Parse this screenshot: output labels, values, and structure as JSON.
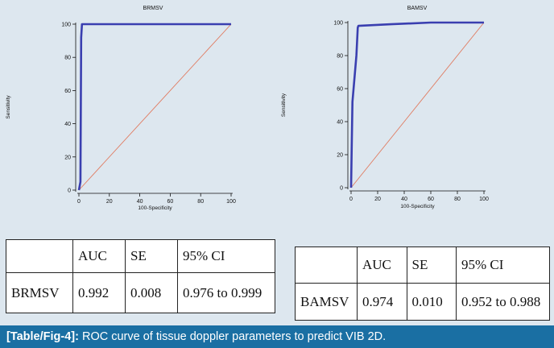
{
  "chart_data": [
    {
      "type": "line",
      "title": "BRMSV",
      "xlabel": "100-Specificity",
      "ylabel": "Sensitivity",
      "xlim": [
        0,
        100
      ],
      "ylim": [
        0,
        100
      ],
      "xticks": [
        "0",
        "20",
        "40",
        "60",
        "80",
        "100"
      ],
      "yticks": [
        "0",
        "20",
        "40",
        "60",
        "80",
        "100"
      ],
      "grid": false,
      "series": [
        {
          "color": "#3a3fb0",
          "points": [
            [
              0,
              0
            ],
            [
              1,
              5
            ],
            [
              1.5,
              92
            ],
            [
              2,
              100
            ],
            [
              50,
              100
            ],
            [
              100,
              100
            ]
          ]
        },
        {
          "color": "#e07a5f",
          "points": [
            [
              0,
              0
            ],
            [
              100,
              100
            ]
          ]
        }
      ]
    },
    {
      "type": "line",
      "title": "BAMSV",
      "xlabel": "100-Specificity",
      "ylabel": "Sensitivity",
      "xlim": [
        0,
        100
      ],
      "ylim": [
        0,
        100
      ],
      "xticks": [
        "0",
        "20",
        "40",
        "60",
        "80",
        "100"
      ],
      "yticks": [
        "0",
        "20",
        "40",
        "60",
        "80",
        "100"
      ],
      "grid": false,
      "series": [
        {
          "color": "#3a3fb0",
          "points": [
            [
              0,
              0
            ],
            [
              0.5,
              25
            ],
            [
              1,
              52
            ],
            [
              4,
              80
            ],
            [
              5,
              97
            ],
            [
              5.5,
              98
            ],
            [
              30,
              99
            ],
            [
              60,
              100
            ],
            [
              100,
              100
            ]
          ]
        },
        {
          "color": "#e07a5f",
          "points": [
            [
              0,
              0
            ],
            [
              100,
              100
            ]
          ]
        }
      ]
    }
  ],
  "tables": [
    {
      "headers": [
        "",
        "AUC",
        "SE",
        "95% CI"
      ],
      "rows": [
        [
          "BRMSV",
          "0.992",
          "0.008",
          "0.976 to 0.999"
        ]
      ]
    },
    {
      "headers": [
        "",
        "AUC",
        "SE",
        "95% CI"
      ],
      "rows": [
        [
          "BAMSV",
          "0.974",
          "0.010",
          "0.952 to 0.988"
        ]
      ]
    }
  ],
  "caption": {
    "label": "[Table/Fig-4]:",
    "text": " ROC curve of tissue doppler parameters to predict VIB 2D."
  },
  "colors": {
    "background": "#dde7ef",
    "roc_line": "#3a3fb0",
    "diagonal": "#e07a5f",
    "caption_bar": "#1a6fa3"
  }
}
